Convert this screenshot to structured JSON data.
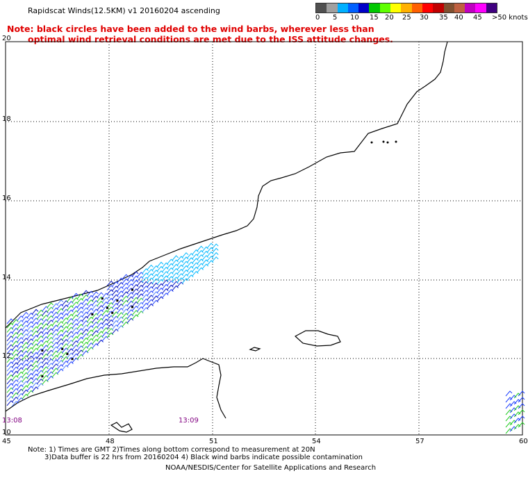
{
  "header": {
    "title": "Rapidscat Winds(12.5KM) v1 20160204 ascending",
    "note_line1": "Note: black circles have been added to the wind barbs, wherever less than",
    "note_line2": "optimal wind retrieval conditions are met due to the ISS attitude changes."
  },
  "legend": {
    "labels": [
      "0",
      "5",
      "10",
      "15",
      "20",
      "25",
      "30",
      "35",
      "40",
      "45",
      ">50 knots"
    ],
    "colors": [
      "#505050",
      "#a0a0a0",
      "#00b0ff",
      "#0060ff",
      "#0000c8",
      "#00c800",
      "#60ff00",
      "#ffff00",
      "#ffb000",
      "#ff6000",
      "#ff0000",
      "#c00000",
      "#805030",
      "#c06040",
      "#c000c0",
      "#ff00ff",
      "#400080"
    ]
  },
  "map": {
    "lat_labels": [
      "20",
      "18",
      "16",
      "14",
      "12",
      "10"
    ],
    "lon_labels": [
      "45",
      "48",
      "51",
      "54",
      "57",
      "60"
    ],
    "time_left": "13:08",
    "time_mid": "13:09"
  },
  "footer": {
    "line1": "Note: 1) Times are GMT 2)Times along bottom correspond to measurement at 20N",
    "line2": "3)Data buffer is 22 hrs from 20160204 4) Black wind barbs indicate possible contamination",
    "line3": "NOAA/NESDIS/Center for Satellite Applications and Research"
  }
}
